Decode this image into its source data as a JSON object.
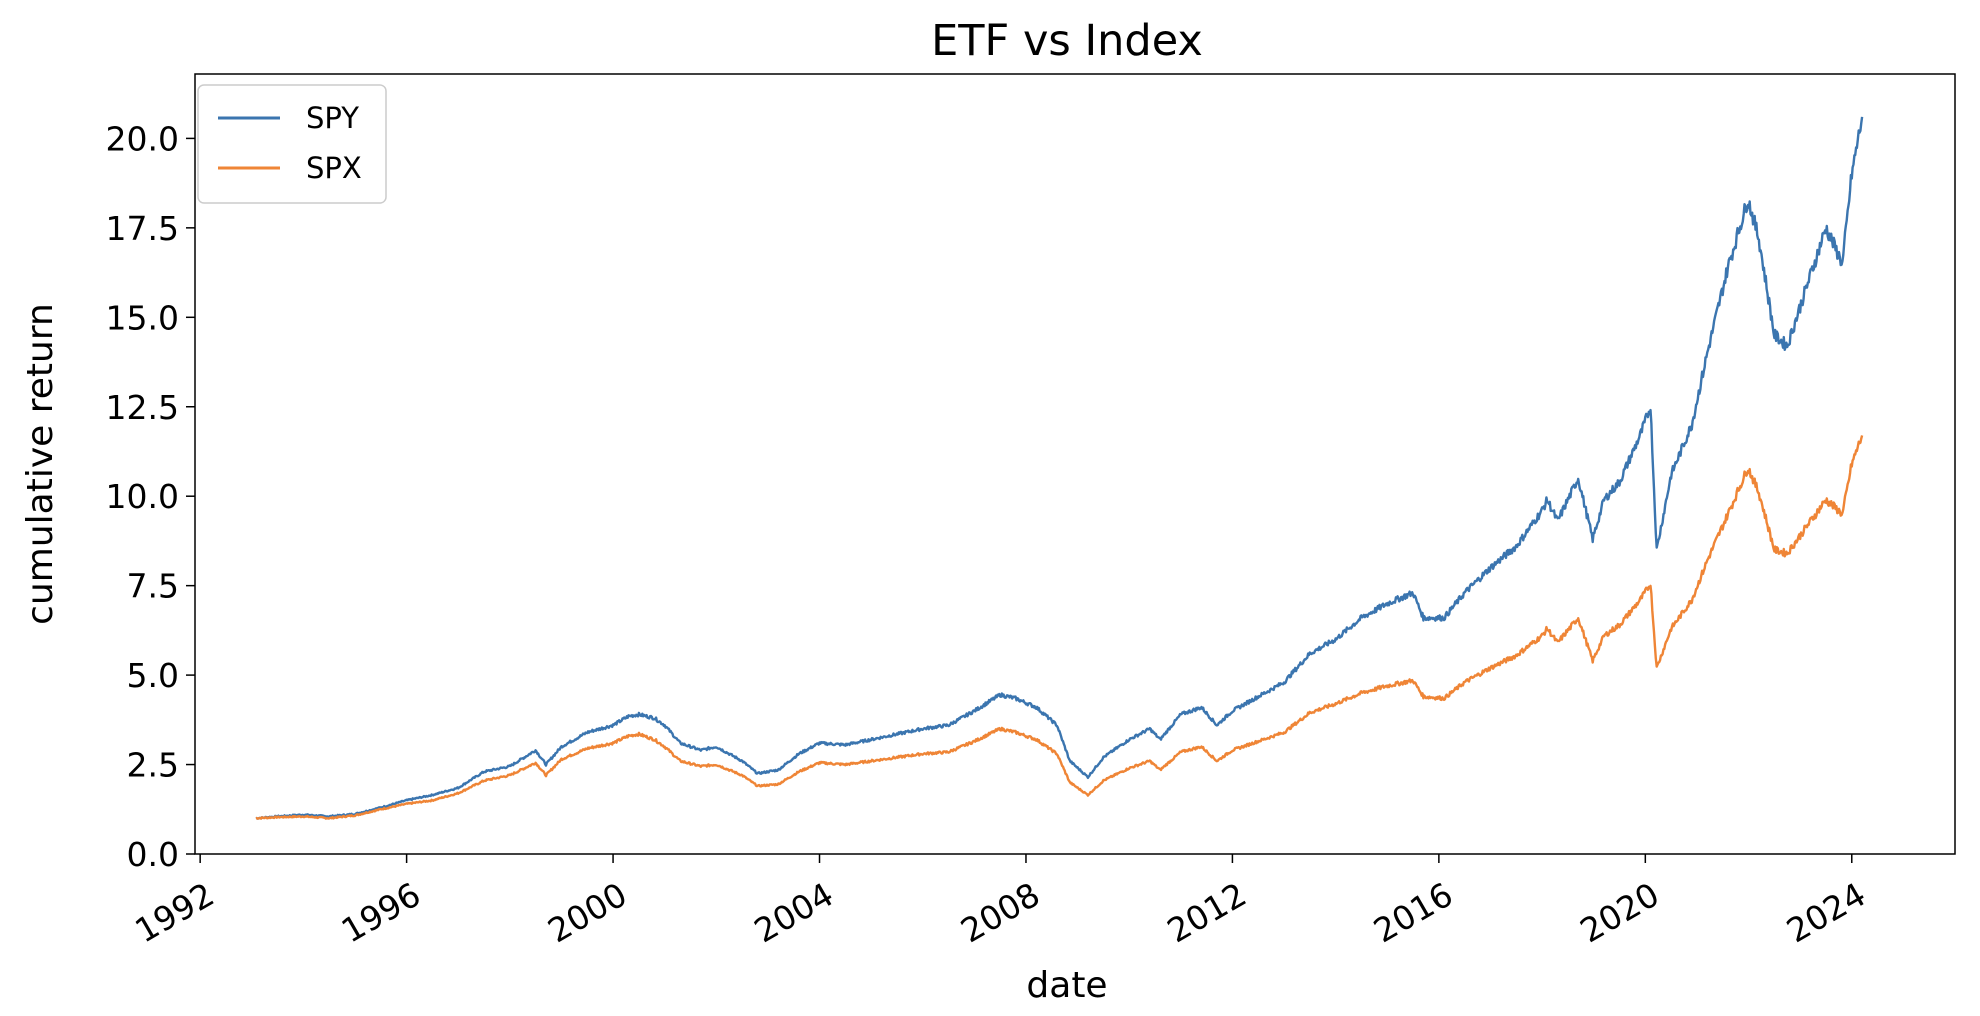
{
  "chart_data": {
    "type": "line",
    "title": "ETF vs Index",
    "xlabel": "date",
    "ylabel": "cumulative return",
    "x_ticks": [
      "1992",
      "1996",
      "2000",
      "2004",
      "2008",
      "2012",
      "2016",
      "2020",
      "2024"
    ],
    "y_ticks": [
      "0.0",
      "2.5",
      "5.0",
      "7.5",
      "10.0",
      "12.5",
      "15.0",
      "17.5",
      "20.0"
    ],
    "xlim": [
      1991.9,
      2026.0
    ],
    "ylim": [
      0,
      21.8
    ],
    "grid": false,
    "legend_position": "top-left",
    "series": [
      {
        "name": "SPY",
        "color": "#3b75af",
        "points": [
          [
            1993.08,
            1.0
          ],
          [
            1993.5,
            1.05
          ],
          [
            1994.0,
            1.1
          ],
          [
            1994.5,
            1.05
          ],
          [
            1995.0,
            1.12
          ],
          [
            1995.5,
            1.3
          ],
          [
            1996.0,
            1.5
          ],
          [
            1996.5,
            1.65
          ],
          [
            1997.0,
            1.85
          ],
          [
            1997.5,
            2.3
          ],
          [
            1998.0,
            2.45
          ],
          [
            1998.5,
            2.9
          ],
          [
            1998.7,
            2.5
          ],
          [
            1999.0,
            3.0
          ],
          [
            1999.5,
            3.4
          ],
          [
            2000.0,
            3.6
          ],
          [
            2000.3,
            3.85
          ],
          [
            2000.5,
            3.9
          ],
          [
            2000.8,
            3.8
          ],
          [
            2001.0,
            3.6
          ],
          [
            2001.3,
            3.1
          ],
          [
            2001.7,
            2.9
          ],
          [
            2002.0,
            3.0
          ],
          [
            2002.5,
            2.6
          ],
          [
            2002.8,
            2.25
          ],
          [
            2003.2,
            2.35
          ],
          [
            2003.6,
            2.8
          ],
          [
            2004.0,
            3.1
          ],
          [
            2004.5,
            3.05
          ],
          [
            2005.0,
            3.2
          ],
          [
            2005.5,
            3.35
          ],
          [
            2006.0,
            3.5
          ],
          [
            2006.5,
            3.6
          ],
          [
            2007.0,
            4.0
          ],
          [
            2007.5,
            4.45
          ],
          [
            2007.8,
            4.35
          ],
          [
            2008.2,
            4.1
          ],
          [
            2008.6,
            3.6
          ],
          [
            2008.85,
            2.6
          ],
          [
            2009.2,
            2.15
          ],
          [
            2009.5,
            2.7
          ],
          [
            2010.0,
            3.2
          ],
          [
            2010.4,
            3.5
          ],
          [
            2010.6,
            3.2
          ],
          [
            2011.0,
            3.9
          ],
          [
            2011.4,
            4.1
          ],
          [
            2011.7,
            3.6
          ],
          [
            2012.0,
            4.0
          ],
          [
            2012.5,
            4.4
          ],
          [
            2013.0,
            4.8
          ],
          [
            2013.5,
            5.6
          ],
          [
            2014.0,
            6.0
          ],
          [
            2014.5,
            6.6
          ],
          [
            2015.0,
            7.0
          ],
          [
            2015.5,
            7.3
          ],
          [
            2015.7,
            6.6
          ],
          [
            2016.1,
            6.6
          ],
          [
            2016.5,
            7.3
          ],
          [
            2017.0,
            8.0
          ],
          [
            2017.5,
            8.6
          ],
          [
            2018.0,
            9.6
          ],
          [
            2018.1,
            9.9
          ],
          [
            2018.3,
            9.3
          ],
          [
            2018.7,
            10.5
          ],
          [
            2018.98,
            8.8
          ],
          [
            2019.2,
            9.9
          ],
          [
            2019.5,
            10.4
          ],
          [
            2019.9,
            11.7
          ],
          [
            2020.1,
            12.5
          ],
          [
            2020.22,
            8.5
          ],
          [
            2020.5,
            10.6
          ],
          [
            2020.9,
            12.0
          ],
          [
            2021.2,
            14.0
          ],
          [
            2021.6,
            16.4
          ],
          [
            2021.99,
            18.3
          ],
          [
            2022.2,
            17.2
          ],
          [
            2022.5,
            14.5
          ],
          [
            2022.75,
            14.2
          ],
          [
            2023.0,
            15.3
          ],
          [
            2023.5,
            17.5
          ],
          [
            2023.82,
            16.5
          ],
          [
            2024.0,
            19.0
          ],
          [
            2024.2,
            20.6
          ]
        ]
      },
      {
        "name": "SPX",
        "color": "#ef8536",
        "points": [
          [
            1993.08,
            1.0
          ],
          [
            1993.5,
            1.03
          ],
          [
            1994.0,
            1.05
          ],
          [
            1994.5,
            1.0
          ],
          [
            1995.0,
            1.08
          ],
          [
            1995.5,
            1.25
          ],
          [
            1996.0,
            1.4
          ],
          [
            1996.5,
            1.5
          ],
          [
            1997.0,
            1.7
          ],
          [
            1997.5,
            2.05
          ],
          [
            1998.0,
            2.2
          ],
          [
            1998.5,
            2.55
          ],
          [
            1998.7,
            2.2
          ],
          [
            1999.0,
            2.65
          ],
          [
            1999.5,
            2.95
          ],
          [
            2000.0,
            3.1
          ],
          [
            2000.3,
            3.3
          ],
          [
            2000.5,
            3.35
          ],
          [
            2000.8,
            3.2
          ],
          [
            2001.0,
            3.0
          ],
          [
            2001.3,
            2.6
          ],
          [
            2001.7,
            2.45
          ],
          [
            2002.0,
            2.5
          ],
          [
            2002.5,
            2.2
          ],
          [
            2002.8,
            1.9
          ],
          [
            2003.2,
            1.95
          ],
          [
            2003.6,
            2.3
          ],
          [
            2004.0,
            2.55
          ],
          [
            2004.5,
            2.5
          ],
          [
            2005.0,
            2.6
          ],
          [
            2005.5,
            2.7
          ],
          [
            2006.0,
            2.8
          ],
          [
            2006.5,
            2.85
          ],
          [
            2007.0,
            3.15
          ],
          [
            2007.5,
            3.5
          ],
          [
            2007.8,
            3.4
          ],
          [
            2008.2,
            3.2
          ],
          [
            2008.6,
            2.8
          ],
          [
            2008.85,
            2.0
          ],
          [
            2009.2,
            1.65
          ],
          [
            2009.5,
            2.05
          ],
          [
            2010.0,
            2.4
          ],
          [
            2010.4,
            2.6
          ],
          [
            2010.6,
            2.35
          ],
          [
            2011.0,
            2.85
          ],
          [
            2011.4,
            3.0
          ],
          [
            2011.7,
            2.6
          ],
          [
            2012.0,
            2.9
          ],
          [
            2012.5,
            3.15
          ],
          [
            2013.0,
            3.4
          ],
          [
            2013.5,
            3.95
          ],
          [
            2014.0,
            4.2
          ],
          [
            2014.5,
            4.5
          ],
          [
            2015.0,
            4.7
          ],
          [
            2015.5,
            4.85
          ],
          [
            2015.7,
            4.4
          ],
          [
            2016.1,
            4.35
          ],
          [
            2016.5,
            4.8
          ],
          [
            2017.0,
            5.2
          ],
          [
            2017.5,
            5.55
          ],
          [
            2018.0,
            6.1
          ],
          [
            2018.1,
            6.3
          ],
          [
            2018.3,
            5.9
          ],
          [
            2018.7,
            6.6
          ],
          [
            2018.98,
            5.4
          ],
          [
            2019.2,
            6.1
          ],
          [
            2019.5,
            6.4
          ],
          [
            2019.9,
            7.1
          ],
          [
            2020.1,
            7.55
          ],
          [
            2020.22,
            5.2
          ],
          [
            2020.5,
            6.3
          ],
          [
            2020.9,
            7.1
          ],
          [
            2021.2,
            8.2
          ],
          [
            2021.6,
            9.5
          ],
          [
            2021.99,
            10.8
          ],
          [
            2022.2,
            10.1
          ],
          [
            2022.5,
            8.5
          ],
          [
            2022.75,
            8.4
          ],
          [
            2023.0,
            8.9
          ],
          [
            2023.5,
            9.9
          ],
          [
            2023.82,
            9.5
          ],
          [
            2024.0,
            10.9
          ],
          [
            2024.2,
            11.7
          ]
        ]
      }
    ]
  }
}
